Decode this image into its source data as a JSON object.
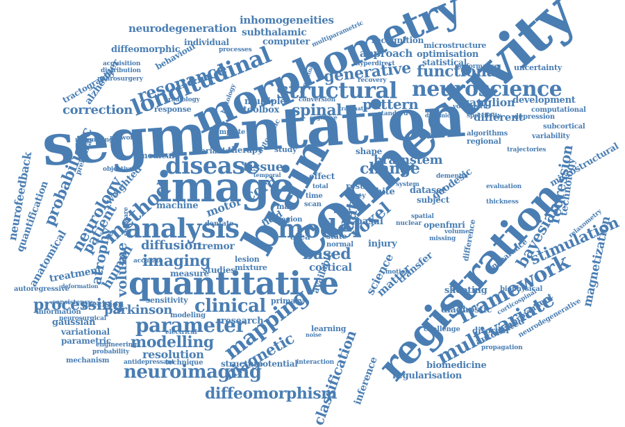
{
  "cloud": {
    "color": "#4a7eb3",
    "words": [
      "segmentation",
      "connectivity",
      "registration",
      "morphometry",
      "image",
      "brain",
      "quantitative",
      "analysis",
      "neuroimaging",
      "longitudinal",
      "structural",
      "neuroscience",
      "disease",
      "model",
      "method",
      "parameter",
      "multivariate",
      "framework",
      "mapping",
      "clinical",
      "diffeomorphism",
      "probabilistic",
      "imaging",
      "generative",
      "voxel",
      "change",
      "processing",
      "data",
      "neurology",
      "modelling",
      "diffusion",
      "atrophy",
      "patient",
      "magnetic",
      "spinal",
      "pattern",
      "correction",
      "resonance",
      "functional",
      "regression",
      "stimulation",
      "volume",
      "based",
      "bayesian",
      "brainstem",
      "cord",
      "tissue",
      "parkinson",
      "human",
      "classification",
      "science",
      "matter",
      "inference",
      "regularisation",
      "magnetization",
      "technology",
      "neurodegeneration",
      "inhomogeneities",
      "subthalamic",
      "approach",
      "optimisation",
      "microstructure",
      "recognition",
      "computer",
      "alzheimer",
      "tractography",
      "anatomical",
      "quantification",
      "neurofeedback",
      "weighted",
      "machine",
      "motor",
      "tremor",
      "cortical",
      "ganglion",
      "development",
      "different",
      "diagnostic",
      "automated",
      "biomedicine",
      "microstructural",
      "resolution",
      "treatment",
      "gaussian",
      "variational",
      "parametric",
      "engineering",
      "probability",
      "sensitivity",
      "precision",
      "information",
      "measure",
      "studies",
      "lesion",
      "mixture",
      "shooting",
      "transfer",
      "white",
      "dataset",
      "subject",
      "basal",
      "grey",
      "injury",
      "openfmri",
      "difference",
      "disorder",
      "geodesic",
      "individual",
      "diffeomorphic",
      "behaviour",
      "multiple",
      "toolbox",
      "response",
      "statistical",
      "uncertainty",
      "depression",
      "computational",
      "subcortical",
      "variability",
      "shape",
      "effect",
      "medical",
      "network",
      "therapy",
      "variable",
      "structure",
      "potential",
      "interaction",
      "technique",
      "antidepressant",
      "mechanism",
      "autoregressive",
      "consistency",
      "neurosurgical",
      "modeling",
      "research",
      "available",
      "learning",
      "primary",
      "accurate",
      "software",
      "objective",
      "acquisition",
      "distribution",
      "neurosurgery",
      "processes",
      "performance",
      "hyperdirect",
      "multiparametric",
      "template",
      "resampling",
      "radiology",
      "dementia",
      "relaxometry",
      "biophysical",
      "appearance",
      "improvement",
      "neurodegenerative",
      "challenge",
      "propagation",
      "corticospinal",
      "trajectories",
      "regional",
      "algorithms",
      "evaluation",
      "thickness",
      "specificity",
      "volumetric",
      "standard",
      "conversion",
      "recovery",
      "automatic",
      "dentate",
      "scan",
      "time",
      "field",
      "region",
      "area",
      "state",
      "normal",
      "tract",
      "map",
      "total",
      "study",
      "system",
      "resul",
      "spatial",
      "missing",
      "volume",
      "histology",
      "trigeminal",
      "cognitive",
      "traumatic",
      "dynamical",
      "nuclear",
      "electrical",
      "prefrontal",
      "noise",
      "temporal",
      "motion",
      "deformation"
    ]
  }
}
